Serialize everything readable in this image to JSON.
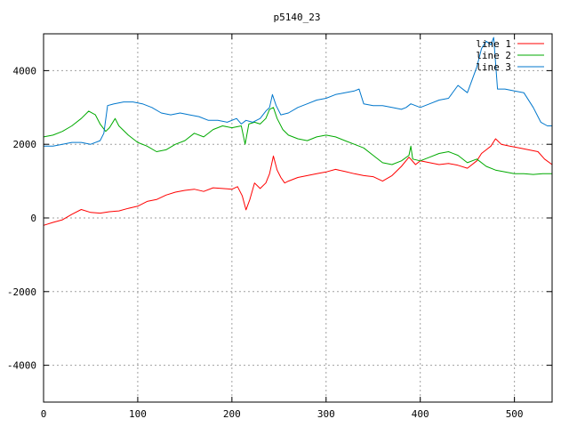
{
  "chart_data": {
    "type": "line",
    "title": "p5140_23",
    "xlabel": "",
    "ylabel": "",
    "xlim": [
      0,
      540
    ],
    "ylim": [
      -5000,
      5000
    ],
    "xticks": [
      0,
      100,
      200,
      300,
      400,
      500
    ],
    "yticks": [
      -4000,
      -2000,
      0,
      2000,
      4000
    ],
    "grid": true,
    "legend": "top-right",
    "series": [
      {
        "name": "line 1",
        "color": "#ff0000",
        "points": [
          [
            0,
            -200
          ],
          [
            10,
            -120
          ],
          [
            20,
            -50
          ],
          [
            30,
            100
          ],
          [
            40,
            230
          ],
          [
            50,
            150
          ],
          [
            60,
            130
          ],
          [
            70,
            170
          ],
          [
            80,
            190
          ],
          [
            90,
            260
          ],
          [
            100,
            320
          ],
          [
            110,
            450
          ],
          [
            120,
            500
          ],
          [
            130,
            620
          ],
          [
            140,
            700
          ],
          [
            150,
            750
          ],
          [
            160,
            780
          ],
          [
            170,
            720
          ],
          [
            180,
            820
          ],
          [
            190,
            800
          ],
          [
            200,
            780
          ],
          [
            206,
            850
          ],
          [
            211,
            600
          ],
          [
            215,
            220
          ],
          [
            219,
            500
          ],
          [
            224,
            950
          ],
          [
            230,
            800
          ],
          [
            236,
            950
          ],
          [
            240,
            1200
          ],
          [
            244,
            1680
          ],
          [
            248,
            1300
          ],
          [
            252,
            1100
          ],
          [
            256,
            950
          ],
          [
            260,
            1000
          ],
          [
            270,
            1100
          ],
          [
            280,
            1150
          ],
          [
            290,
            1200
          ],
          [
            300,
            1250
          ],
          [
            310,
            1320
          ],
          [
            320,
            1260
          ],
          [
            330,
            1200
          ],
          [
            340,
            1150
          ],
          [
            350,
            1120
          ],
          [
            360,
            1000
          ],
          [
            370,
            1150
          ],
          [
            380,
            1400
          ],
          [
            388,
            1650
          ],
          [
            395,
            1450
          ],
          [
            400,
            1550
          ],
          [
            410,
            1500
          ],
          [
            420,
            1450
          ],
          [
            430,
            1480
          ],
          [
            440,
            1430
          ],
          [
            450,
            1350
          ],
          [
            460,
            1550
          ],
          [
            465,
            1750
          ],
          [
            470,
            1850
          ],
          [
            475,
            1950
          ],
          [
            480,
            2150
          ],
          [
            486,
            2000
          ],
          [
            495,
            1950
          ],
          [
            505,
            1900
          ],
          [
            515,
            1850
          ],
          [
            525,
            1800
          ],
          [
            532,
            1600
          ],
          [
            540,
            1450
          ]
        ]
      },
      {
        "name": "line 2",
        "color": "#00aa00",
        "points": [
          [
            0,
            2200
          ],
          [
            10,
            2250
          ],
          [
            20,
            2350
          ],
          [
            30,
            2500
          ],
          [
            40,
            2700
          ],
          [
            48,
            2900
          ],
          [
            55,
            2800
          ],
          [
            60,
            2550
          ],
          [
            66,
            2350
          ],
          [
            70,
            2450
          ],
          [
            76,
            2700
          ],
          [
            80,
            2500
          ],
          [
            90,
            2250
          ],
          [
            100,
            2050
          ],
          [
            110,
            1950
          ],
          [
            120,
            1800
          ],
          [
            130,
            1850
          ],
          [
            140,
            2000
          ],
          [
            150,
            2100
          ],
          [
            160,
            2300
          ],
          [
            170,
            2200
          ],
          [
            180,
            2400
          ],
          [
            190,
            2500
          ],
          [
            200,
            2450
          ],
          [
            210,
            2500
          ],
          [
            214,
            2000
          ],
          [
            218,
            2550
          ],
          [
            224,
            2600
          ],
          [
            230,
            2550
          ],
          [
            236,
            2700
          ],
          [
            240,
            2950
          ],
          [
            244,
            3000
          ],
          [
            248,
            2700
          ],
          [
            254,
            2400
          ],
          [
            260,
            2250
          ],
          [
            270,
            2150
          ],
          [
            280,
            2100
          ],
          [
            290,
            2200
          ],
          [
            300,
            2250
          ],
          [
            310,
            2200
          ],
          [
            320,
            2100
          ],
          [
            330,
            2000
          ],
          [
            340,
            1900
          ],
          [
            350,
            1700
          ],
          [
            360,
            1500
          ],
          [
            370,
            1450
          ],
          [
            380,
            1550
          ],
          [
            388,
            1700
          ],
          [
            390,
            1950
          ],
          [
            392,
            1600
          ],
          [
            400,
            1550
          ],
          [
            410,
            1650
          ],
          [
            420,
            1750
          ],
          [
            430,
            1800
          ],
          [
            440,
            1700
          ],
          [
            450,
            1500
          ],
          [
            460,
            1600
          ],
          [
            470,
            1400
          ],
          [
            480,
            1300
          ],
          [
            490,
            1250
          ],
          [
            500,
            1200
          ],
          [
            510,
            1200
          ],
          [
            520,
            1180
          ],
          [
            530,
            1200
          ],
          [
            540,
            1200
          ]
        ]
      },
      {
        "name": "line 3",
        "color": "#0077cc",
        "points": [
          [
            0,
            1950
          ],
          [
            10,
            1950
          ],
          [
            20,
            2000
          ],
          [
            30,
            2050
          ],
          [
            40,
            2050
          ],
          [
            50,
            2000
          ],
          [
            60,
            2100
          ],
          [
            64,
            2300
          ],
          [
            68,
            3050
          ],
          [
            75,
            3100
          ],
          [
            85,
            3150
          ],
          [
            95,
            3150
          ],
          [
            105,
            3100
          ],
          [
            115,
            3000
          ],
          [
            125,
            2850
          ],
          [
            135,
            2800
          ],
          [
            145,
            2850
          ],
          [
            155,
            2800
          ],
          [
            165,
            2750
          ],
          [
            175,
            2650
          ],
          [
            185,
            2650
          ],
          [
            195,
            2600
          ],
          [
            205,
            2700
          ],
          [
            210,
            2550
          ],
          [
            215,
            2650
          ],
          [
            222,
            2600
          ],
          [
            230,
            2700
          ],
          [
            236,
            2900
          ],
          [
            240,
            3000
          ],
          [
            243,
            3350
          ],
          [
            247,
            3050
          ],
          [
            252,
            2800
          ],
          [
            260,
            2850
          ],
          [
            270,
            3000
          ],
          [
            280,
            3100
          ],
          [
            290,
            3200
          ],
          [
            300,
            3250
          ],
          [
            310,
            3350
          ],
          [
            320,
            3400
          ],
          [
            330,
            3450
          ],
          [
            335,
            3500
          ],
          [
            340,
            3100
          ],
          [
            350,
            3050
          ],
          [
            360,
            3050
          ],
          [
            370,
            3000
          ],
          [
            380,
            2950
          ],
          [
            385,
            3000
          ],
          [
            390,
            3100
          ],
          [
            400,
            3000
          ],
          [
            410,
            3100
          ],
          [
            420,
            3200
          ],
          [
            430,
            3250
          ],
          [
            440,
            3600
          ],
          [
            450,
            3400
          ],
          [
            455,
            3750
          ],
          [
            460,
            4100
          ],
          [
            465,
            4600
          ],
          [
            470,
            4800
          ],
          [
            475,
            4700
          ],
          [
            478,
            4900
          ],
          [
            482,
            3500
          ],
          [
            490,
            3500
          ],
          [
            500,
            3450
          ],
          [
            510,
            3400
          ],
          [
            520,
            3000
          ],
          [
            528,
            2600
          ],
          [
            535,
            2500
          ],
          [
            540,
            2500
          ]
        ]
      }
    ]
  }
}
